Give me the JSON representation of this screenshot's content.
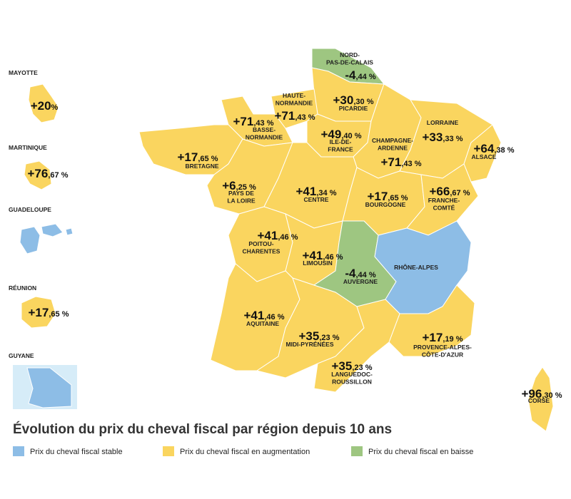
{
  "title": "Évolution du prix du cheval fiscal par région depuis 10 ans",
  "legend": [
    {
      "label": "Prix du cheval fiscal stable",
      "color": "#8dbde6"
    },
    {
      "label": "Prix du cheval fiscal en augmentation",
      "color": "#fad55f"
    },
    {
      "label": "Prix du cheval fiscal en baisse",
      "color": "#9ec681"
    }
  ],
  "regions": [
    {
      "name": [
        "NORD-",
        "PAS-DE-CALAIS"
      ],
      "value": "-4,44 %",
      "color": "#9ec681"
    },
    {
      "name": [
        "PICARDIE"
      ],
      "value": "+30,30 %",
      "color": "#fad55f"
    },
    {
      "name": [
        "HAUTE-",
        "NORMANDIE"
      ],
      "value": "+71,43 %",
      "color": "#fad55f"
    },
    {
      "name": [
        "BASSE-",
        "NORMANDIE"
      ],
      "value": "+71,43 %",
      "color": "#fad55f"
    },
    {
      "name": [
        "ILE-DE-",
        "FRANCE"
      ],
      "value": "+49,40 %",
      "color": "#fad55f"
    },
    {
      "name": [
        "CHAMPAGNE-",
        "ARDENNE"
      ],
      "value": "+71,43 %",
      "color": "#fad55f"
    },
    {
      "name": [
        "LORRAINE"
      ],
      "value": "+33,33 %",
      "color": "#fad55f"
    },
    {
      "name": [
        "ALSACE"
      ],
      "value": "+64,38 %",
      "color": "#fad55f"
    },
    {
      "name": [
        "BRETAGNE"
      ],
      "value": "+17,65 %",
      "color": "#fad55f"
    },
    {
      "name": [
        "PAYS DE",
        "LA LOIRE"
      ],
      "value": "+6,25 %",
      "color": "#fad55f"
    },
    {
      "name": [
        "CENTRE"
      ],
      "value": "+41,34 %",
      "color": "#fad55f"
    },
    {
      "name": [
        "BOURGOGNE"
      ],
      "value": "+17,65 %",
      "color": "#fad55f"
    },
    {
      "name": [
        "FRANCHE-",
        "COMTÉ"
      ],
      "value": "+66,67 %",
      "color": "#fad55f"
    },
    {
      "name": [
        "POITOU-",
        "CHARENTES"
      ],
      "value": "+41,46 %",
      "color": "#fad55f"
    },
    {
      "name": [
        "LIMOUSIN"
      ],
      "value": "+41,46 %",
      "color": "#fad55f"
    },
    {
      "name": [
        "AUVERGNE"
      ],
      "value": "-4,44 %",
      "color": "#9ec681"
    },
    {
      "name": [
        "RHÔNE-ALPES"
      ],
      "color": "#8dbde6"
    },
    {
      "name": [
        "AQUITAINE"
      ],
      "value": "+41,46 %",
      "color": "#fad55f"
    },
    {
      "name": [
        "MIDI-PYRÉNÉES"
      ],
      "value": "+35,23 %",
      "color": "#fad55f"
    },
    {
      "name": [
        "PROVENCE-ALPES-",
        "CÔTE-D'AZUR"
      ],
      "value": "+17,19 %",
      "color": "#fad55f"
    },
    {
      "name": [
        "LANGUEDOC-",
        "ROUSSILLON"
      ],
      "value": "+35,23 %",
      "color": "#fad55f"
    },
    {
      "name": [
        "CORSE"
      ],
      "value": "+96,30 %",
      "color": "#fad55f"
    },
    {
      "name": [
        "MAYOTTE"
      ],
      "value": "+20%",
      "color": "#fad55f"
    },
    {
      "name": [
        "MARTINIQUE"
      ],
      "value": "+76,67 %",
      "color": "#fad55f"
    },
    {
      "name": [
        "GUADELOUPE"
      ],
      "color": "#8dbde6"
    },
    {
      "name": [
        "RÉUNION"
      ],
      "value": "+17,65 %",
      "color": "#fad55f"
    },
    {
      "name": [
        "GUYANE"
      ],
      "color": "#8dbde6"
    }
  ]
}
